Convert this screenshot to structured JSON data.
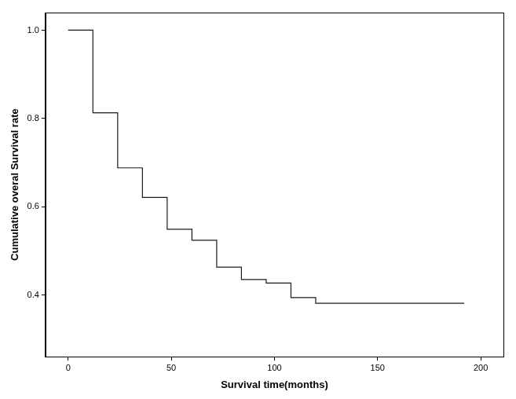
{
  "chart_data": {
    "type": "line",
    "line_style": "stepped",
    "x_label": "Survival time(months)",
    "y_label": "Cumulative overal Survival rate",
    "x": [
      0,
      12,
      24,
      36,
      48,
      60,
      72,
      84,
      96,
      108,
      120,
      192
    ],
    "values": [
      1.0,
      0.813,
      0.688,
      0.621,
      0.549,
      0.524,
      0.463,
      0.435,
      0.427,
      0.394,
      0.381,
      0.381
    ],
    "color": "#1a1a1a",
    "xlim": [
      -11,
      211
    ],
    "xticks": [
      0,
      50,
      100,
      150,
      200
    ],
    "ylim": [
      0.26,
      1.04
    ],
    "yticks": [
      0.4,
      0.6,
      0.8,
      {
        "value": 1,
        "label": "1.0"
      }
    ],
    "grid": false
  }
}
